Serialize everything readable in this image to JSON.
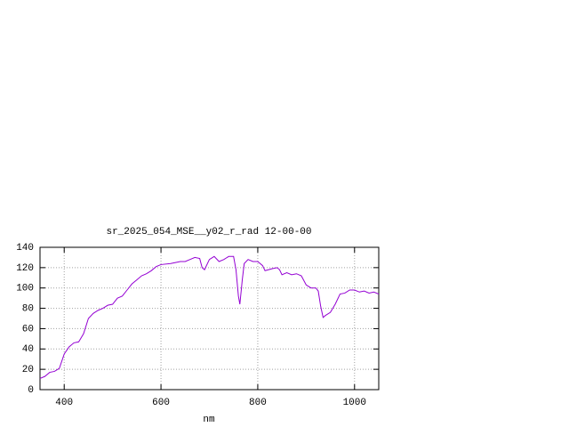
{
  "chart_data": {
    "type": "line",
    "title": "sr_2025_054_MSE__y02_r_rad 12-00-00",
    "x_label": "nm",
    "x": [
      350,
      360,
      370,
      380,
      390,
      400,
      410,
      420,
      430,
      440,
      450,
      460,
      470,
      480,
      490,
      500,
      510,
      520,
      530,
      540,
      550,
      560,
      570,
      580,
      590,
      600,
      620,
      640,
      650,
      660,
      670,
      680,
      685,
      690,
      700,
      710,
      720,
      730,
      740,
      750,
      755,
      760,
      763,
      768,
      772,
      780,
      790,
      800,
      810,
      815,
      830,
      840,
      845,
      850,
      860,
      870,
      880,
      890,
      900,
      910,
      920,
      925,
      930,
      935,
      940,
      950,
      960,
      970,
      980,
      990,
      1000,
      1010,
      1020,
      1030,
      1040,
      1050
    ],
    "values": [
      11,
      13,
      17,
      18,
      21,
      35,
      42,
      46,
      47,
      55,
      70,
      75,
      78,
      80,
      83,
      84,
      90,
      92,
      98,
      104,
      108,
      112,
      114,
      117,
      121,
      123,
      124,
      126,
      126,
      128,
      130,
      129,
      120,
      118,
      128,
      131,
      126,
      128,
      131,
      131,
      118,
      92,
      84,
      108,
      124,
      128,
      126,
      126,
      122,
      117,
      119,
      120,
      118,
      113,
      115,
      113,
      114,
      112,
      103,
      100,
      100,
      97,
      82,
      71,
      73,
      76,
      84,
      94,
      95,
      98,
      98,
      96,
      97,
      95,
      96,
      94
    ],
    "color": "#9400d3",
    "xlim": [
      350,
      1050
    ],
    "xticks": [
      400,
      600,
      800,
      1000
    ],
    "ylim": [
      0,
      140
    ],
    "yticks": [
      0,
      20,
      40,
      60,
      80,
      100,
      120,
      140
    ],
    "grid": true
  }
}
